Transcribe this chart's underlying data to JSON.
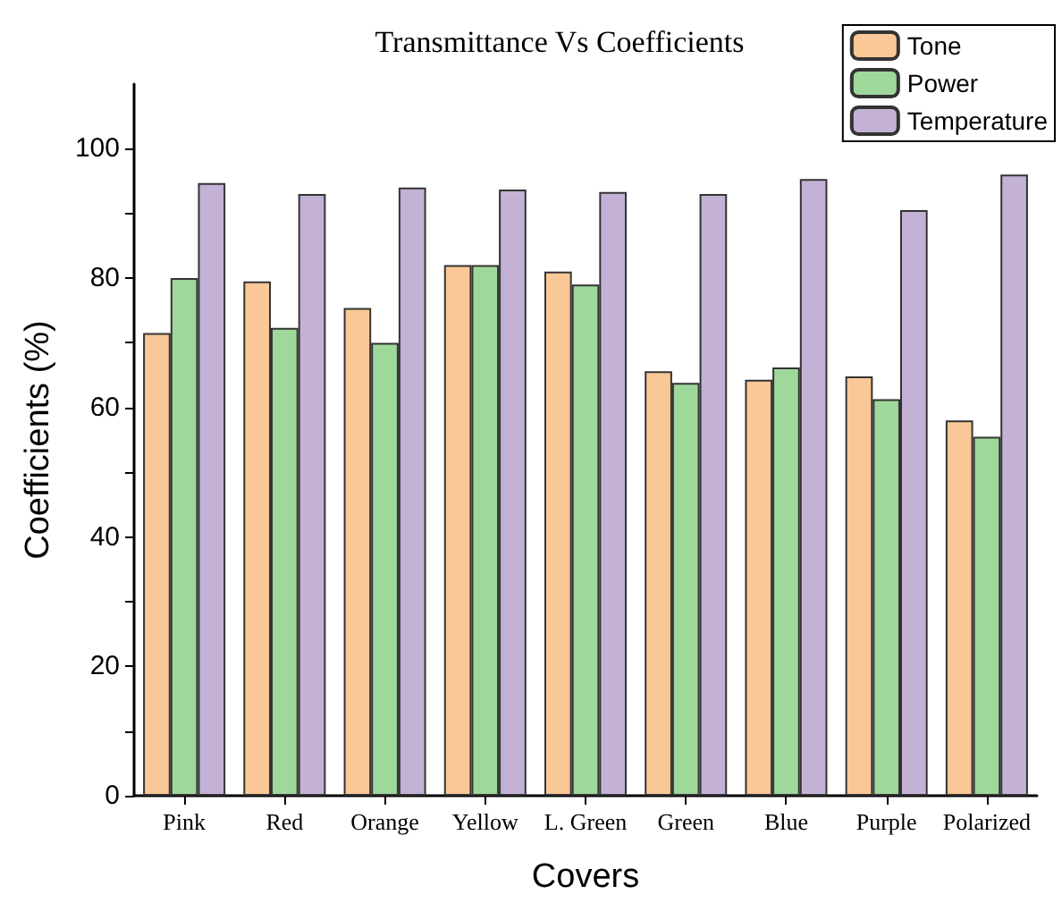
{
  "chart_data": {
    "type": "bar",
    "title": "Transmittance Vs Coefficients",
    "xlabel": "Covers",
    "ylabel": "Coefficients (%)",
    "categories": [
      "Pink",
      "Red",
      "Orange",
      "Yellow",
      "L. Green",
      "Green",
      "Blue",
      "Purple",
      "Polarized"
    ],
    "series": [
      {
        "name": "Tone",
        "color": "#f9c896",
        "values": [
          71.5,
          79.5,
          75.4,
          82,
          81,
          65.6,
          64.3,
          64.8,
          58
        ]
      },
      {
        "name": "Power",
        "color": "#9fd89b",
        "values": [
          80,
          72.3,
          70,
          82,
          79,
          63.8,
          66.2,
          61.3,
          55.5
        ]
      },
      {
        "name": "Temperature",
        "color": "#c3b2d6",
        "values": [
          94.7,
          93,
          94,
          93.7,
          93.3,
          93,
          95.3,
          90.5,
          96
        ]
      }
    ],
    "ylim": [
      0,
      110
    ],
    "yticks": [
      0,
      {
        "value": 10,
        "label": null
      },
      20,
      {
        "value": 30,
        "label": null
      },
      40,
      {
        "value": 50,
        "label": null
      },
      60,
      {
        "value": 70,
        "label": null
      },
      80,
      {
        "value": 90,
        "label": null
      },
      100
    ],
    "grid": false,
    "legend": "top right"
  }
}
